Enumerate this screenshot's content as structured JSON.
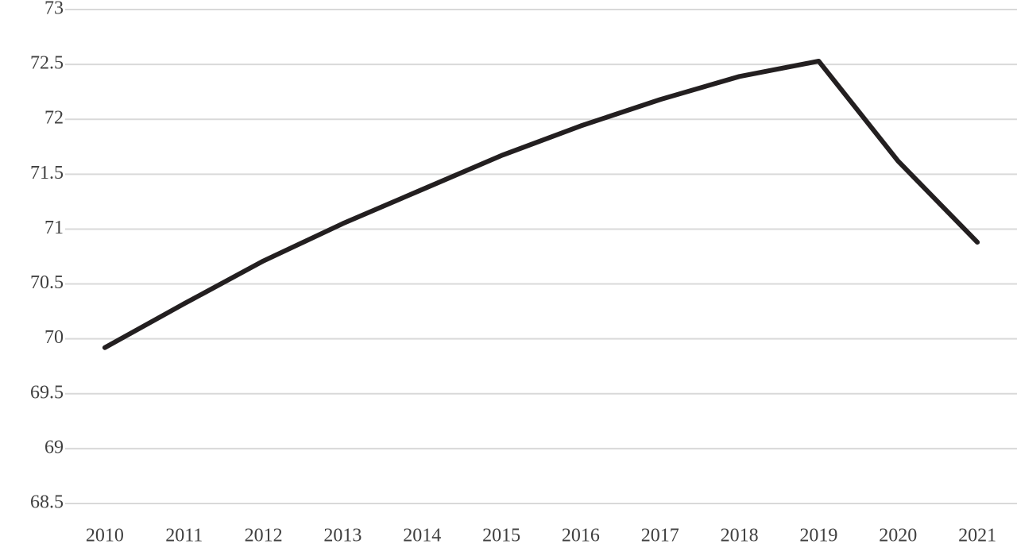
{
  "chart_data": {
    "type": "line",
    "categories": [
      "2010",
      "2011",
      "2012",
      "2013",
      "2014",
      "2015",
      "2016",
      "2017",
      "2018",
      "2019",
      "2020",
      "2021"
    ],
    "series": [
      {
        "color": "#231f20",
        "values": [
          69.92,
          70.32,
          70.71,
          71.05,
          71.36,
          71.67,
          71.94,
          72.18,
          72.39,
          72.53,
          71.62,
          70.88
        ]
      }
    ],
    "ylim": [
      68.5,
      73
    ],
    "yticks": [
      68.5,
      69,
      69.5,
      70,
      70.5,
      71,
      71.5,
      72,
      72.5,
      73
    ],
    "grid": true
  }
}
